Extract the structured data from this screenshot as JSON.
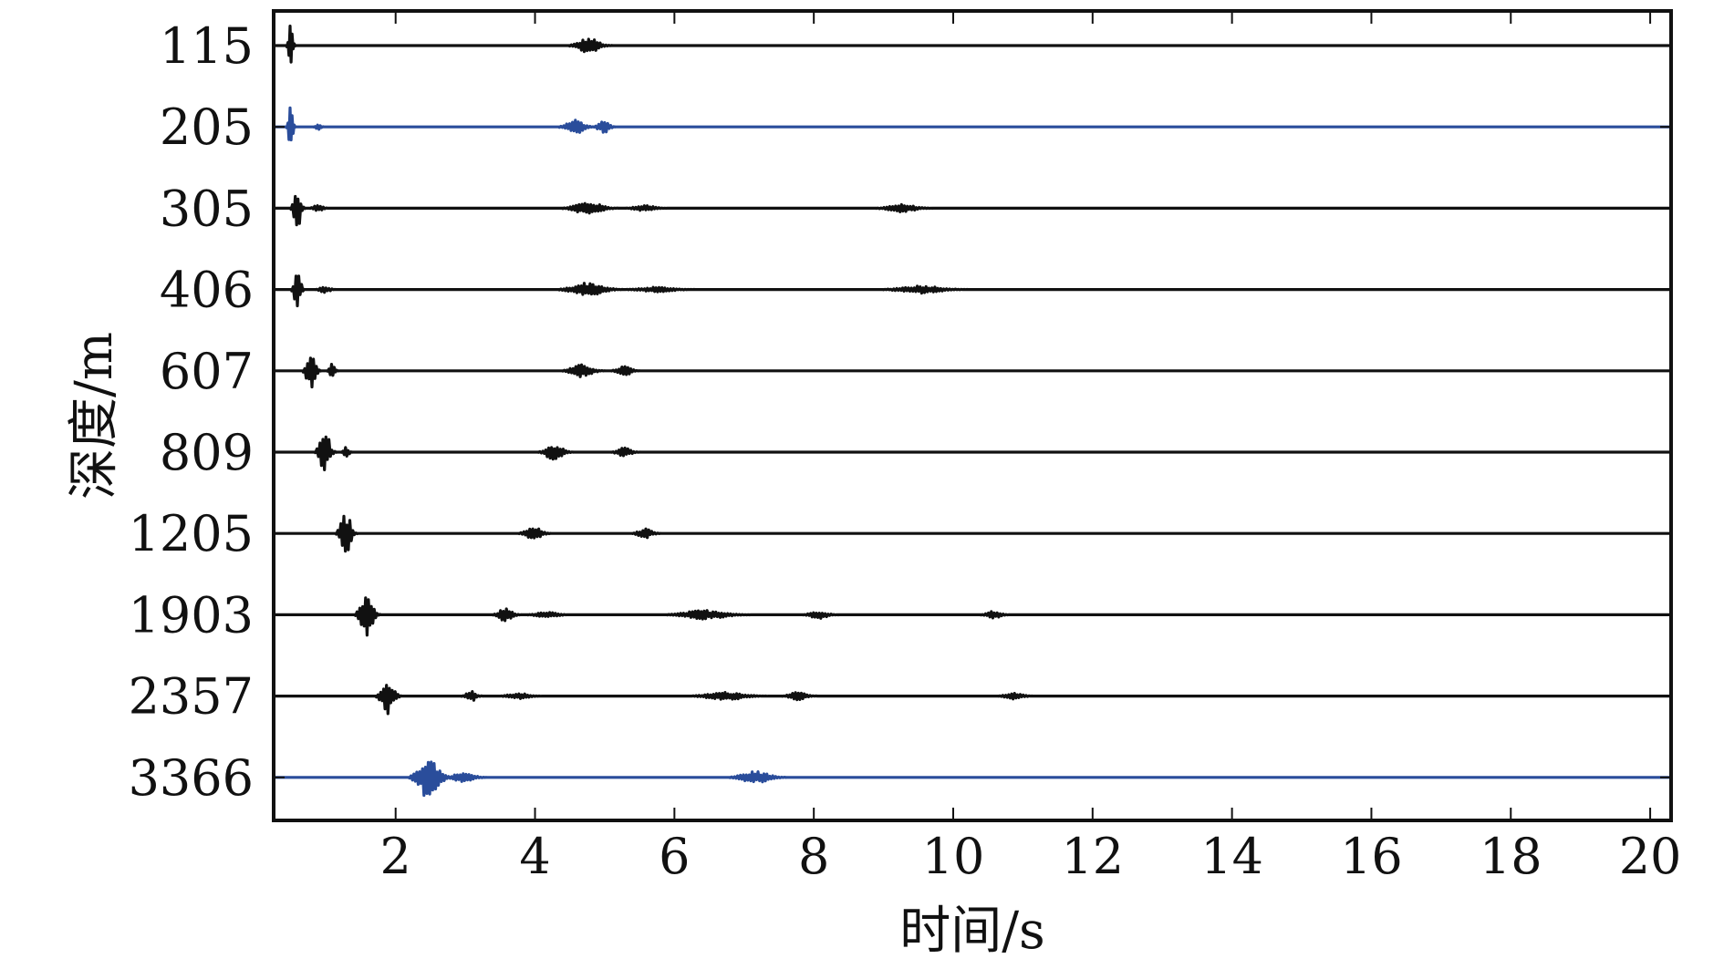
{
  "chart_data": {
    "type": "line",
    "title": "",
    "xlabel": "时间/s",
    "ylabel": "深度/m",
    "xlim": [
      0.25,
      20.3
    ],
    "x_ticks": [
      2,
      4,
      6,
      8,
      10,
      12,
      14,
      16,
      18,
      20
    ],
    "grid": false,
    "legend": "none",
    "colors": {
      "default": "#111111",
      "highlight": "#2a4d9b"
    },
    "series": [
      {
        "depth_label": "115",
        "color": "#111111",
        "bursts": [
          [
            0.5,
            0.12,
            0.55
          ],
          [
            4.8,
            0.6,
            0.2
          ]
        ]
      },
      {
        "depth_label": "205",
        "color": "#2a4d9b",
        "bursts": [
          [
            0.5,
            0.12,
            0.6
          ],
          [
            0.9,
            0.15,
            0.08
          ],
          [
            4.6,
            0.5,
            0.2
          ],
          [
            5.0,
            0.3,
            0.18
          ]
        ]
      },
      {
        "depth_label": "305",
        "color": "#111111",
        "bursts": [
          [
            0.6,
            0.2,
            0.55
          ],
          [
            0.9,
            0.25,
            0.1
          ],
          [
            4.8,
            0.8,
            0.16
          ],
          [
            5.6,
            0.6,
            0.07
          ],
          [
            9.3,
            0.8,
            0.1
          ]
        ]
      },
      {
        "depth_label": "406",
        "color": "#111111",
        "bursts": [
          [
            0.6,
            0.18,
            0.55
          ],
          [
            1.0,
            0.3,
            0.08
          ],
          [
            4.8,
            0.9,
            0.18
          ],
          [
            5.8,
            1.0,
            0.06
          ],
          [
            9.6,
            1.2,
            0.1
          ]
        ]
      },
      {
        "depth_label": "607",
        "color": "#111111",
        "bursts": [
          [
            0.8,
            0.25,
            0.55
          ],
          [
            1.1,
            0.15,
            0.2
          ],
          [
            4.7,
            0.6,
            0.16
          ],
          [
            5.3,
            0.4,
            0.13
          ]
        ]
      },
      {
        "depth_label": "809",
        "color": "#111111",
        "bursts": [
          [
            1.0,
            0.3,
            0.55
          ],
          [
            1.3,
            0.15,
            0.15
          ],
          [
            4.3,
            0.5,
            0.2
          ],
          [
            5.3,
            0.4,
            0.12
          ]
        ]
      },
      {
        "depth_label": "1205",
        "color": "#111111",
        "bursts": [
          [
            1.3,
            0.3,
            0.55
          ],
          [
            4.0,
            0.45,
            0.18
          ],
          [
            5.6,
            0.4,
            0.12
          ]
        ]
      },
      {
        "depth_label": "1903",
        "color": "#111111",
        "bursts": [
          [
            1.6,
            0.35,
            0.55
          ],
          [
            3.6,
            0.4,
            0.18
          ],
          [
            4.2,
            0.6,
            0.07
          ],
          [
            6.5,
            1.2,
            0.12
          ],
          [
            8.1,
            0.5,
            0.1
          ],
          [
            10.6,
            0.4,
            0.1
          ]
        ]
      },
      {
        "depth_label": "2357",
        "color": "#111111",
        "bursts": [
          [
            1.9,
            0.35,
            0.55
          ],
          [
            3.1,
            0.3,
            0.14
          ],
          [
            3.8,
            0.6,
            0.07
          ],
          [
            6.8,
            1.1,
            0.1
          ],
          [
            7.8,
            0.5,
            0.1
          ],
          [
            10.9,
            0.5,
            0.08
          ]
        ]
      },
      {
        "depth_label": "3366",
        "color": "#2a4d9b",
        "bursts": [
          [
            2.5,
            0.6,
            0.55
          ],
          [
            3.0,
            0.6,
            0.12
          ],
          [
            7.2,
            0.8,
            0.16
          ]
        ]
      }
    ]
  }
}
